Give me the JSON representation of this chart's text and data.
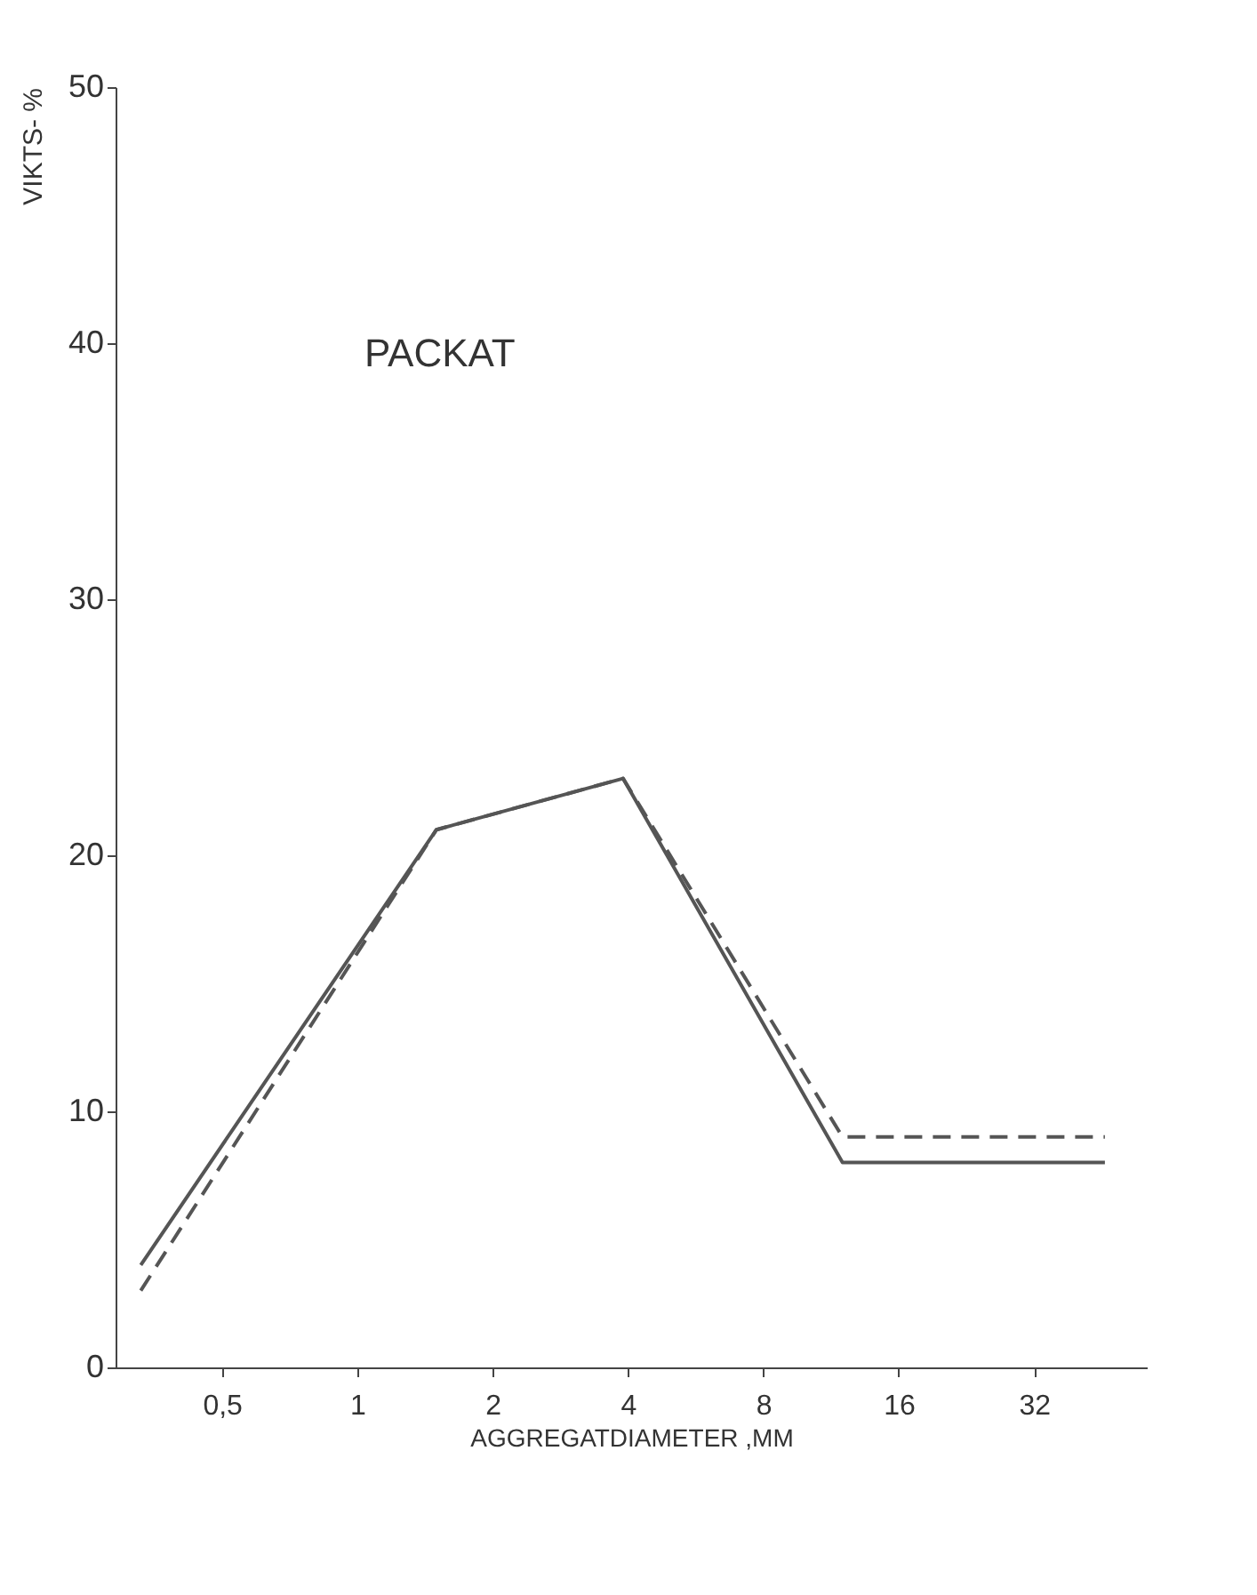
{
  "chart_data": {
    "type": "line",
    "annotations": [
      "PACKAT"
    ],
    "xlabel": "AGGREGATDIAMETER ,MM",
    "ylabel": "VIKTS- %",
    "x": [
      0.33,
      1.5,
      3.9,
      12,
      46
    ],
    "series": [
      {
        "color": "#555555",
        "values": [
          4,
          21,
          23,
          8,
          8
        ],
        "line_style": "solid"
      },
      {
        "color": "#555555",
        "values": [
          3,
          21,
          23,
          9,
          9
        ],
        "line_style": "dashed"
      }
    ],
    "log": "x",
    "xlim": [
      0.29,
      57
    ],
    "xticks": [
      {
        "value": 0.5,
        "label": "0,5"
      },
      1,
      2,
      4,
      8,
      16,
      32
    ],
    "ylim": [
      0,
      50
    ],
    "yticks": [
      0,
      10,
      20,
      30,
      40,
      50
    ],
    "grid": false,
    "marker": "none"
  }
}
